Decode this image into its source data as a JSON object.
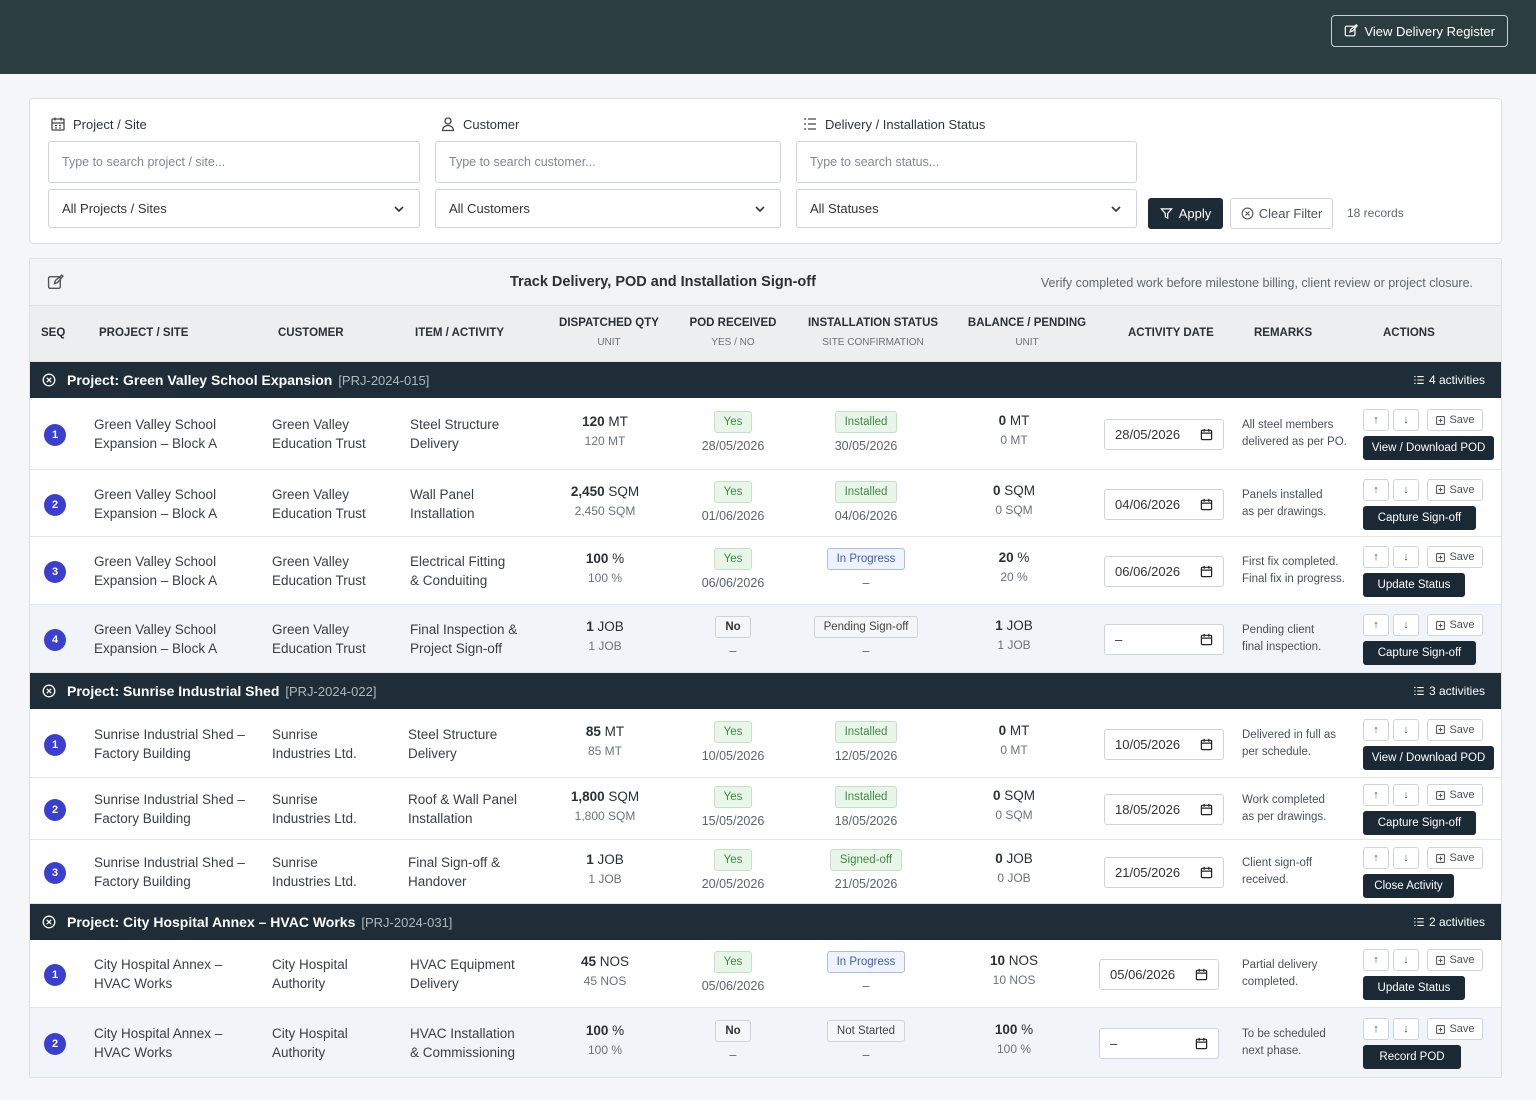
{
  "header": {
    "view_register": "View Delivery Register"
  },
  "filters": {
    "project_label": "Project / Site",
    "project_placeholder": "Type to search project / site...",
    "project_select": "All Projects / Sites",
    "customer_label": "Customer",
    "customer_placeholder": "Type to search customer...",
    "customer_select": "All Customers",
    "status_label": "Delivery / Installation Status",
    "status_placeholder": "Type to search status...",
    "status_select": "All Statuses",
    "apply": "Apply",
    "clear": "Clear Filter",
    "records": "18 records"
  },
  "table": {
    "title": "Track Delivery, POD and Installation Sign-off",
    "subtitle": "Verify completed work before milestone billing, client review or project closure.",
    "columns": {
      "seq": "SEQ",
      "project": "PROJECT / SITE",
      "customer": "CUSTOMER",
      "item": "ITEM / ACTIVITY",
      "dispatched": "DISPATCHED QTY",
      "dispatched_sub": "UNIT",
      "pod": "POD RECEIVED",
      "pod_sub": "YES / NO",
      "install": "INSTALLATION STATUS",
      "install_sub": "SITE CONFIRMATION",
      "balance": "BALANCE / PENDING",
      "balance_sub": "UNIT",
      "activity_date": "ACTIVITY DATE",
      "remarks": "REMARKS",
      "actions": "ACTIONS"
    },
    "save_label": "Save",
    "up_label": "↑",
    "down_label": "↓"
  },
  "groups": [
    {
      "name": "Project: Green Valley School Expansion",
      "code": "[PRJ-2024-015]",
      "count": "4 activities",
      "rows": [
        {
          "seq": "1",
          "project": [
            "Green Valley School",
            "Expansion – Block A"
          ],
          "customer": [
            "Green Valley",
            "Education Trust"
          ],
          "item": [
            "Steel Structure",
            "Delivery"
          ],
          "disp_num": "120",
          "disp_unit": "MT",
          "disp_sub": "120 MT",
          "pod": "Yes",
          "pod_date": "28/05/2026",
          "inst": "Installed",
          "inst_date": "30/05/2026",
          "bal_num": "0",
          "bal_unit": "MT",
          "bal_sub": "0 MT",
          "date": "28/05/2026",
          "remark": [
            "All steel members",
            "delivered as per PO."
          ],
          "action": "View / Download POD"
        },
        {
          "seq": "2",
          "project": [
            "Green Valley School",
            "Expansion – Block A"
          ],
          "customer": [
            "Green Valley",
            "Education Trust"
          ],
          "item": [
            "Wall Panel",
            "Installation"
          ],
          "disp_num": "2,450",
          "disp_unit": "SQM",
          "disp_sub": "2,450 SQM",
          "pod": "Yes",
          "pod_date": "01/06/2026",
          "inst": "Installed",
          "inst_date": "04/06/2026",
          "bal_num": "0",
          "bal_unit": "SQM",
          "bal_sub": "0 SQM",
          "date": "04/06/2026",
          "remark": [
            "Panels installed",
            "as per drawings."
          ],
          "action": "Capture Sign-off"
        },
        {
          "seq": "3",
          "project": [
            "Green Valley School",
            "Expansion – Block A"
          ],
          "customer": [
            "Green Valley",
            "Education Trust"
          ],
          "item": [
            "Electrical Fitting",
            "& Conduiting"
          ],
          "disp_num": "100",
          "disp_unit": "%",
          "disp_sub": "100 %",
          "pod": "Yes",
          "pod_date": "06/06/2026",
          "inst": "In Progress",
          "inst_date": "–",
          "bal_num": "20",
          "bal_unit": "%",
          "bal_sub": "20 %",
          "date": "06/06/2026",
          "remark": [
            "First fix completed.",
            "Final fix in progress."
          ],
          "action": "Update Status"
        },
        {
          "seq": "4",
          "project": [
            "Green Valley School",
            "Expansion – Block A"
          ],
          "customer": [
            "Green Valley",
            "Education Trust"
          ],
          "item": [
            "Final Inspection &",
            "Project Sign-off"
          ],
          "disp_num": "1",
          "disp_unit": "JOB",
          "disp_sub": "1 JOB",
          "pod": "No",
          "pod_date": "–",
          "inst": "Pending Sign-off",
          "inst_date": "–",
          "bal_num": "1",
          "bal_unit": "JOB",
          "bal_sub": "1 JOB",
          "date": "–",
          "remark": [
            "Pending client",
            "final inspection."
          ],
          "action": "Capture Sign-off"
        }
      ]
    },
    {
      "name": "Project: Sunrise Industrial Shed",
      "code": "[PRJ-2024-022]",
      "count": "3 activities",
      "rows": [
        {
          "seq": "1",
          "project": [
            "Sunrise Industrial Shed –",
            "Factory Building"
          ],
          "customer": [
            "Sunrise",
            "Industries Ltd."
          ],
          "item": [
            "Steel Structure",
            "Delivery"
          ],
          "disp_num": "85",
          "disp_unit": "MT",
          "disp_sub": "85 MT",
          "pod": "Yes",
          "pod_date": "10/05/2026",
          "inst": "Installed",
          "inst_date": "12/05/2026",
          "bal_num": "0",
          "bal_unit": "MT",
          "bal_sub": "0 MT",
          "date": "10/05/2026",
          "remark": [
            "Delivered in full as",
            "per schedule."
          ],
          "action": "View / Download POD"
        },
        {
          "seq": "2",
          "project": [
            "Sunrise Industrial Shed –",
            "Factory Building"
          ],
          "customer": [
            "Sunrise",
            "Industries Ltd."
          ],
          "item": [
            "Roof & Wall Panel",
            "Installation"
          ],
          "disp_num": "1,800",
          "disp_unit": "SQM",
          "disp_sub": "1,800 SQM",
          "pod": "Yes",
          "pod_date": "15/05/2026",
          "inst": "Installed",
          "inst_date": "18/05/2026",
          "bal_num": "0",
          "bal_unit": "SQM",
          "bal_sub": "0 SQM",
          "date": "18/05/2026",
          "remark": [
            "Work completed",
            "as per drawings."
          ],
          "action": "Capture Sign-off"
        },
        {
          "seq": "3",
          "project": [
            "Sunrise Industrial Shed –",
            "Factory Building"
          ],
          "customer": [
            "Sunrise",
            "Industries Ltd."
          ],
          "item": [
            "Final Sign-off &",
            "Handover"
          ],
          "disp_num": "1",
          "disp_unit": "JOB",
          "disp_sub": "1 JOB",
          "pod": "Yes",
          "pod_date": "20/05/2026",
          "inst": "Signed-off",
          "inst_date": "21/05/2026",
          "bal_num": "0",
          "bal_unit": "JOB",
          "bal_sub": "0 JOB",
          "date": "21/05/2026",
          "remark": [
            "Client sign-off",
            "received."
          ],
          "action": "Close Activity"
        }
      ]
    },
    {
      "name": "Project: City Hospital Annex – HVAC Works",
      "code": "[PRJ-2024-031]",
      "count": "2 activities",
      "rows": [
        {
          "seq": "1",
          "project": [
            "City Hospital Annex –",
            "HVAC Works"
          ],
          "customer": [
            "City Hospital",
            "Authority"
          ],
          "item": [
            "HVAC Equipment",
            "Delivery"
          ],
          "disp_num": "45",
          "disp_unit": "NOS",
          "disp_sub": "45 NOS",
          "pod": "Yes",
          "pod_date": "05/06/2026",
          "inst": "In Progress",
          "inst_date": "–",
          "bal_num": "10",
          "bal_unit": "NOS",
          "bal_sub": "10 NOS",
          "date": "05/06/2026",
          "remark": [
            "Partial delivery",
            "completed."
          ],
          "action": "Update Status"
        },
        {
          "seq": "2",
          "project": [
            "City Hospital Annex –",
            "HVAC Works"
          ],
          "customer": [
            "City Hospital",
            "Authority"
          ],
          "item": [
            "HVAC Installation",
            "& Commissioning"
          ],
          "disp_num": "100",
          "disp_unit": "%",
          "disp_sub": "100 %",
          "pod": "No",
          "pod_date": "–",
          "inst": "Not Started",
          "inst_date": "–",
          "bal_num": "100",
          "bal_unit": "%",
          "bal_sub": "100 %",
          "date": "–",
          "remark": [
            "To be scheduled",
            "next phase."
          ],
          "action": "Record POD"
        }
      ]
    }
  ]
}
